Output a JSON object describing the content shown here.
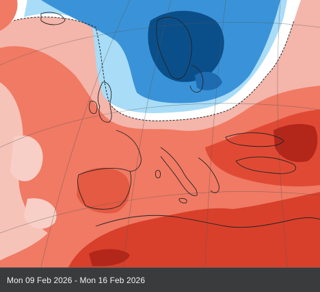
{
  "caption": {
    "date_range": "Mon 09 Feb 2026 - Mon 16 Feb 2026"
  },
  "map": {
    "projection": "polar-stereographic",
    "region": "Europe and North Africa",
    "colors": {
      "cold_strong": "#0b4f8a",
      "cold_medium": "#3a93d8",
      "cold_light": "#a9dcf7",
      "neutral": "#ffffff",
      "warm_light": "#f4b5aa",
      "warm_medium": "#f07a64",
      "warm_strong": "#d8402b",
      "warm_extreme": "#9e1a0c",
      "coastline": "#222222",
      "graticule": "#555555"
    }
  }
}
